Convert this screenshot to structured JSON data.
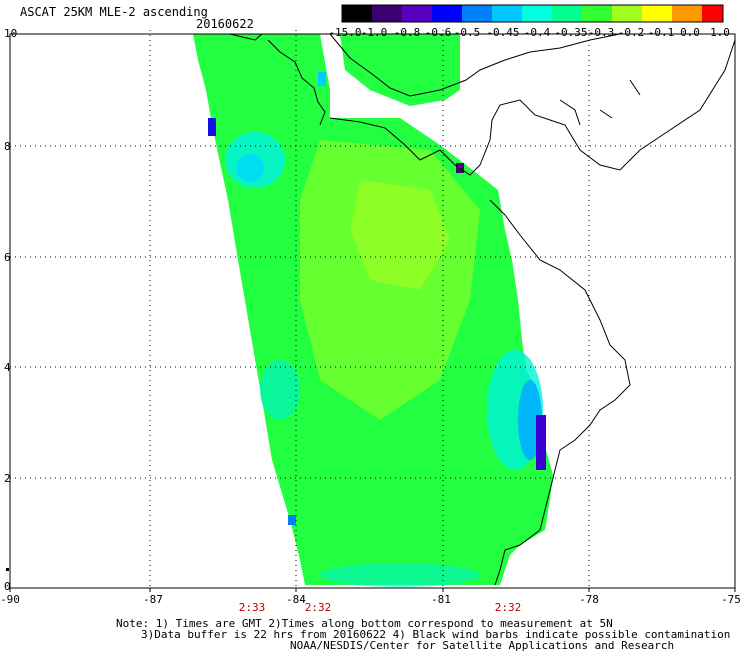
{
  "header": {
    "title": "ASCAT 25KM MLE-2 ascending",
    "date": "20160622"
  },
  "colorbar": {
    "labels": [
      "-15.0",
      "-1.0",
      "-0.8",
      "-0.6",
      "-0.5",
      "-0.45",
      "-0.4",
      "-0.35",
      "-0.3",
      "-0.2",
      "-0.1",
      "0.0",
      "1.0"
    ],
    "colors": [
      "#000000",
      "#3a0070",
      "#5a00c0",
      "#0000ff",
      "#0080ff",
      "#00c8ff",
      "#00ffe0",
      "#00ff90",
      "#30ff30",
      "#a0ff20",
      "#ffff00",
      "#ff9900",
      "#ff0000"
    ]
  },
  "axes": {
    "y_ticks": [
      "10",
      "8",
      "6",
      "4",
      "2",
      "0"
    ],
    "x_ticks": [
      "-90",
      "-87",
      "-84",
      "-81",
      "-78",
      "-75"
    ],
    "lon_range": [
      -90,
      -75
    ],
    "lat_range": [
      0,
      10
    ]
  },
  "times": [
    {
      "label": "2:33",
      "lon": -85.1
    },
    {
      "label": "2:32",
      "lon": -83.5
    },
    {
      "label": "2:32",
      "lon": -79.8
    }
  ],
  "notes": {
    "line1": "Note: 1) Times are GMT 2)Times along bottom correspond to measurement at 5N",
    "line2": "3)Data buffer is 22 hrs from 20160622 4) Black wind barbs indicate possible contamination",
    "line3": "NOAA/NESDIS/Center for Satellite Applications and Research"
  }
}
